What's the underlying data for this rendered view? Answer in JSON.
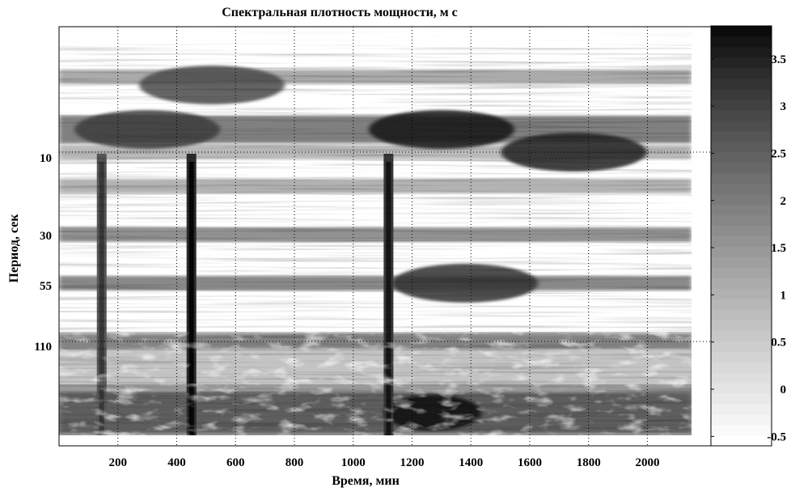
{
  "chart_data": {
    "type": "heatmap",
    "title": "Спектральная плотность мощности, м с",
    "xlabel": "Время, мин",
    "ylabel": "Период, сек",
    "colormap": "grayscale (white = low, black = high)",
    "xlim": [
      0,
      2150
    ],
    "x_ticks": [
      200,
      400,
      600,
      800,
      1000,
      1200,
      1400,
      1600,
      1800,
      2000
    ],
    "y_ticks": [
      "10",
      "30",
      "55",
      "110"
    ],
    "y_gridlines_at": [
      "10",
      "110"
    ],
    "grid": "dotted",
    "colorbar": {
      "range": [
        -0.6,
        3.85
      ],
      "ticks": [
        "-0.5",
        "0",
        "0.5",
        "1",
        "1.5",
        "2",
        "2.5",
        "3",
        "3.5"
      ],
      "placement": "right"
    },
    "period_bands": [
      {
        "period": "4",
        "intensity": 1.6
      },
      {
        "period": "7",
        "intensity": 2.6
      },
      {
        "period": "10",
        "intensity": 1.2
      },
      {
        "period": "20",
        "intensity": 1.4
      },
      {
        "period": "30",
        "intensity": 2.2
      },
      {
        "period": "55",
        "intensity": 2.4
      },
      {
        "period": "110",
        "intensity": 2.2
      },
      {
        "period": "long",
        "intensity": 2.8
      }
    ],
    "bursts": [
      {
        "time": 300,
        "period": "7",
        "intensity": 3.0
      },
      {
        "time": 520,
        "period": "5",
        "intensity": 2.8
      },
      {
        "time": 1300,
        "period": "7",
        "intensity": 3.6
      },
      {
        "time": 1380,
        "period": "55",
        "intensity": 3.2
      },
      {
        "time": 1750,
        "period": "10",
        "intensity": 3.4
      },
      {
        "time": 1270,
        "period": "long",
        "intensity": 3.7
      }
    ],
    "vertical_streaks": [
      {
        "time": 145,
        "intensity": 2.6
      },
      {
        "time": 450,
        "intensity": 3.3
      },
      {
        "time": 1120,
        "intensity": 3.1
      }
    ]
  }
}
